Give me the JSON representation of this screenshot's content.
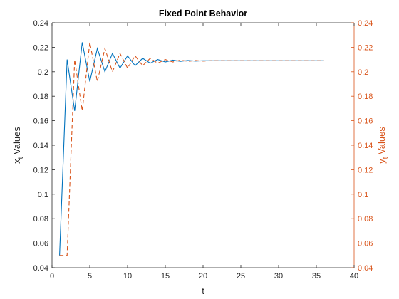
{
  "chart_data": {
    "type": "line",
    "title": "Fixed Point Behavior",
    "xlabel": "t",
    "ylabel_left": "x_t Values",
    "ylabel_left_main": "x",
    "ylabel_left_sub": "t",
    "ylabel_left_rest": " Values",
    "ylabel_right": "y_t Values",
    "ylabel_right_main": "y",
    "ylabel_right_sub": "t",
    "ylabel_right_rest": " Values",
    "xlim": [
      0,
      40
    ],
    "ylim_left": [
      0.04,
      0.24
    ],
    "ylim_right": [
      0.04,
      0.24
    ],
    "x_ticks": [
      0,
      5,
      10,
      15,
      20,
      25,
      30,
      35,
      40
    ],
    "x_tick_labels": [
      "0",
      "5",
      "10",
      "15",
      "20",
      "25",
      "30",
      "35",
      "40"
    ],
    "y_ticks": [
      0.04,
      0.06,
      0.08,
      0.1,
      0.12,
      0.14,
      0.16,
      0.18,
      0.2,
      0.22,
      0.24
    ],
    "y_tick_labels": [
      "0.04",
      "0.06",
      "0.08",
      "0.1",
      "0.12",
      "0.14",
      "0.16",
      "0.18",
      "0.2",
      "0.22",
      "0.24"
    ],
    "grid": false,
    "legend": "none",
    "colors": {
      "left_axis": "#262626",
      "right_axis": "#d95319",
      "x_series": "#0072bd",
      "y_series": "#d95319"
    },
    "series": [
      {
        "axis": "left",
        "style": "solid",
        "x": [
          1,
          2,
          3,
          4,
          5,
          6,
          7,
          8,
          9,
          10,
          11,
          12,
          13,
          14,
          15,
          16,
          17,
          18,
          19,
          20,
          21,
          22,
          23,
          24,
          25,
          26,
          27,
          28,
          29,
          30,
          31,
          32,
          33,
          34,
          35,
          36
        ],
        "values": [
          0.05,
          0.21,
          0.168,
          0.224,
          0.192,
          0.219,
          0.2,
          0.215,
          0.203,
          0.213,
          0.205,
          0.211,
          0.207,
          0.21,
          0.208,
          0.2095,
          0.2085,
          0.2092,
          0.2087,
          0.209,
          0.209,
          0.209,
          0.209,
          0.209,
          0.209,
          0.209,
          0.209,
          0.209,
          0.209,
          0.209,
          0.209,
          0.209,
          0.209,
          0.209,
          0.209,
          0.209
        ]
      },
      {
        "axis": "right",
        "style": "dashed",
        "x": [
          1,
          2,
          3,
          4,
          5,
          6,
          7,
          8,
          9,
          10,
          11,
          12,
          13,
          14,
          15,
          16,
          17,
          18,
          19,
          20,
          21,
          22,
          23,
          24,
          25,
          26,
          27,
          28,
          29,
          30,
          31,
          32,
          33,
          34,
          35,
          36
        ],
        "values": [
          0.05,
          0.05,
          0.21,
          0.168,
          0.224,
          0.192,
          0.219,
          0.2,
          0.215,
          0.203,
          0.213,
          0.205,
          0.211,
          0.207,
          0.21,
          0.208,
          0.2095,
          0.2085,
          0.2092,
          0.2087,
          0.209,
          0.209,
          0.209,
          0.209,
          0.209,
          0.209,
          0.209,
          0.209,
          0.209,
          0.209,
          0.209,
          0.209,
          0.209,
          0.209,
          0.209,
          0.209
        ]
      }
    ]
  }
}
